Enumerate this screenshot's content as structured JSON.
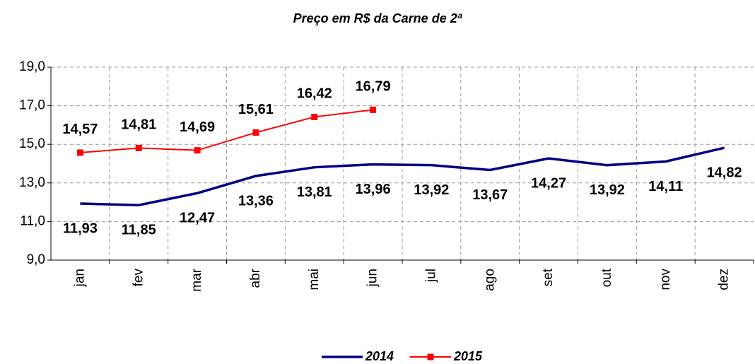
{
  "chart_data": {
    "type": "line",
    "title": "Preço em R$ da Carne de 2ª",
    "categories": [
      "jan",
      "fev",
      "mar",
      "abr",
      "mai",
      "jun",
      "jul",
      "ago",
      "set",
      "out",
      "nov",
      "dez"
    ],
    "series": [
      {
        "name": "2014",
        "color": "#000080",
        "values": [
          11.93,
          11.85,
          12.47,
          13.36,
          13.81,
          13.96,
          13.92,
          13.67,
          14.27,
          13.92,
          14.11,
          14.82
        ],
        "value_labels": [
          "11,93",
          "11,85",
          "12,47",
          "13,36",
          "13,81",
          "13,96",
          "13,92",
          "13,67",
          "14,27",
          "13,92",
          "14,11",
          "14,82"
        ]
      },
      {
        "name": "2015",
        "color": "#ff0000",
        "values": [
          14.57,
          14.81,
          14.69,
          15.61,
          16.42,
          16.79,
          null,
          null,
          null,
          null,
          null,
          null
        ],
        "value_labels": [
          "14,57",
          "14,81",
          "14,69",
          "15,61",
          "16,42",
          "16,79",
          null,
          null,
          null,
          null,
          null,
          null
        ]
      }
    ],
    "ylim": [
      9,
      19
    ],
    "yticks": [
      {
        "value": 9,
        "label": "9,0"
      },
      {
        "value": 11,
        "label": "11,0"
      },
      {
        "value": 13,
        "label": "13,0"
      },
      {
        "value": 15,
        "label": "15,0"
      },
      {
        "value": 17,
        "label": "17,0"
      },
      {
        "value": 19,
        "label": "19,0"
      }
    ],
    "grid": true,
    "legend": "bottom"
  }
}
